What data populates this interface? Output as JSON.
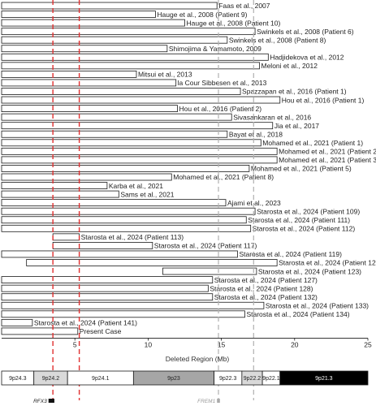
{
  "chart_data": {
    "type": "bar",
    "orientation": "horizontal",
    "xlabel": "Deleted Region (Mb)",
    "xlim": [
      0,
      25
    ],
    "xticks": [
      5,
      10,
      15,
      20,
      25
    ],
    "grid": false,
    "bars": [
      {
        "label": "Faas et al., 2007",
        "start": 0,
        "end": 14.7
      },
      {
        "label": "Hauge et al., 2008 (Patient 9)",
        "start": 0,
        "end": 10.5
      },
      {
        "label": "Hauge et al., 2008 (Patient 10)",
        "start": 0,
        "end": 12.5
      },
      {
        "label": "Swinkels et al., 2008 (Patient 6)",
        "start": 0,
        "end": 17.3
      },
      {
        "label": "Swinkels et al., 2008 (Patient 8)",
        "start": 0,
        "end": 15.4
      },
      {
        "label": "Shimojima & Yamamoto, 2009",
        "start": 0,
        "end": 11.3
      },
      {
        "label": "Hadjidekova et al., 2012",
        "start": 0,
        "end": 18.2
      },
      {
        "label": "Meloni et al., 2012",
        "start": 0,
        "end": 17.6
      },
      {
        "label": "Mitsui et al., 2013",
        "start": 0,
        "end": 9.2
      },
      {
        "label": "la Cour Sibbesen et al., 2013",
        "start": 0,
        "end": 11.9
      },
      {
        "label": "Spazzapan et al., 2016 (Patient 1)",
        "start": 0,
        "end": 16.3
      },
      {
        "label": "Hou et al., 2016 (Patient 1)",
        "start": 0,
        "end": 19.0
      },
      {
        "label": "Hou et al., 2016 (Patient 2)",
        "start": 0,
        "end": 12.0
      },
      {
        "label": "Sivasankaran et al., 2016",
        "start": 0,
        "end": 15.7
      },
      {
        "label": "Jia et al., 2017",
        "start": 0,
        "end": 18.5
      },
      {
        "label": "Bayat et al., 2018",
        "start": 0,
        "end": 15.4
      },
      {
        "label": "Mohamed et al., 2021 (Patient 1)",
        "start": 0,
        "end": 17.7
      },
      {
        "label": "Mohamed et al., 2021 (Patient 2)",
        "start": 0,
        "end": 18.8
      },
      {
        "label": "Mohamed et al., 2021 (Patient 3)",
        "start": 0,
        "end": 18.8
      },
      {
        "label": "Mohamed et al., 2021 (Patient 5)",
        "start": 0,
        "end": 16.9
      },
      {
        "label": "Mohamed et al., 2021 (Patient 8)",
        "start": 0,
        "end": 11.6
      },
      {
        "label": "Karba et al., 2021",
        "start": 0,
        "end": 7.2
      },
      {
        "label": "Sams et al., 2021",
        "start": 0,
        "end": 8.0
      },
      {
        "label": "Ajami et al., 2023",
        "start": 0,
        "end": 15.3
      },
      {
        "label": "Starosta et al., 2024 (Patient 109)",
        "start": 0,
        "end": 17.3
      },
      {
        "label": "Starosta et al., 2024 (Patient 111)",
        "start": 0,
        "end": 16.7
      },
      {
        "label": "Starosta et al., 2024 (Patient 112)",
        "start": 0,
        "end": 17.0
      },
      {
        "label": "Starosta et al., 2024 (Patient 113)",
        "start": 3.5,
        "end": 5.3
      },
      {
        "label": "Starosta et al., 2024 (Patient 117)",
        "start": 3.5,
        "end": 10.3
      },
      {
        "label": "Starosta et al., 2024 (Patient 119)",
        "start": 0,
        "end": 16.1
      },
      {
        "label": "Starosta et al., 2024 (Patient 122)",
        "start": 1.7,
        "end": 18.8
      },
      {
        "label": "Starosta et al., 2024 (Patient 123)",
        "start": 11.0,
        "end": 17.4
      },
      {
        "label": "Starosta et al., 2024 (Patient 127)",
        "start": 0,
        "end": 14.4
      },
      {
        "label": "Starosta et al., 2024 (Patient 128)",
        "start": 0,
        "end": 14.1
      },
      {
        "label": "Starosta et al., 2024 (Patient 132)",
        "start": 0,
        "end": 14.4
      },
      {
        "label": "Starosta et al., 2024 (Patient 133)",
        "start": 0,
        "end": 17.9
      },
      {
        "label": "Starosta et al., 2024 (Patient 134)",
        "start": 0,
        "end": 16.6
      },
      {
        "label": "Starosta et al., 2024 (Patient 141)",
        "start": 0,
        "end": 2.1
      },
      {
        "label": "Present Case",
        "start": 0,
        "end": 5.2
      }
    ],
    "reference_lines": [
      {
        "x": 3.5,
        "color": "#e03030",
        "style": "dashed"
      },
      {
        "x": 5.3,
        "color": "#e03030",
        "style": "dashed"
      },
      {
        "x": 14.8,
        "color": "#b0b0b0",
        "style": "dashed"
      },
      {
        "x": 17.2,
        "color": "#b0b0b0",
        "style": "dashed"
      }
    ],
    "bands": [
      {
        "name": "9p24.3",
        "start": 0,
        "end": 2.2,
        "fill": "#ffffff"
      },
      {
        "name": "9p24.2",
        "start": 2.2,
        "end": 4.5,
        "fill": "#d9d9d9"
      },
      {
        "name": "9p24.1",
        "start": 4.5,
        "end": 9.0,
        "fill": "#ffffff"
      },
      {
        "name": "9p23",
        "start": 9.0,
        "end": 14.5,
        "fill": "#a6a6a6"
      },
      {
        "name": "9p22.3",
        "start": 14.5,
        "end": 16.4,
        "fill": "#ffffff"
      },
      {
        "name": "9p22.2",
        "start": 16.4,
        "end": 17.8,
        "fill": "#d9d9d9"
      },
      {
        "name": "9p22.1",
        "start": 17.8,
        "end": 19.0,
        "fill": "#ffffff"
      },
      {
        "name": "9p21.3",
        "start": 19.0,
        "end": 25.0,
        "fill": "#000000"
      }
    ],
    "genes": [
      {
        "name": "RFX3",
        "start": 3.2,
        "end": 3.6
      },
      {
        "name": "FREM1",
        "start": 14.7,
        "end": 14.9
      }
    ]
  }
}
